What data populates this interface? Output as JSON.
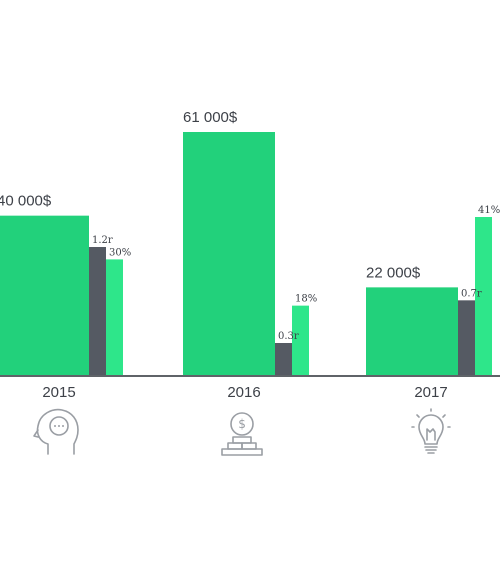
{
  "chart_data": {
    "type": "bar",
    "categories": [
      "2015",
      "2016",
      "2017"
    ],
    "series": [
      {
        "values": [
          40000,
          61000,
          22000
        ],
        "labels": [
          "40 000$",
          "61 000$",
          "22 000$"
        ],
        "color": "#22d17b"
      },
      {
        "values": [
          1.2,
          0.3,
          0.7
        ],
        "labels": [
          "1.2r",
          "0.3r",
          "0.7r"
        ],
        "color": "#555a63"
      },
      {
        "values": [
          30,
          18,
          41
        ],
        "labels": [
          "30%",
          "18%",
          "41%"
        ],
        "color": "#2ee68a"
      }
    ],
    "icons": [
      "head-idea-icon",
      "money-coin-stack-icon",
      "lightbulb-icon"
    ],
    "axis_color": "#5f6368",
    "grid": false,
    "legend": "none"
  }
}
